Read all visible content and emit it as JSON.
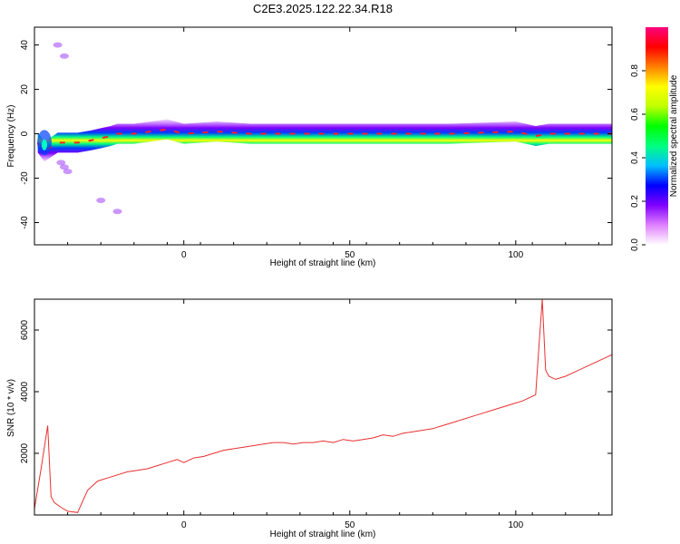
{
  "title": "C2E3.2025.122.22.34.R18",
  "chart_data": [
    {
      "type": "heatmap",
      "xlabel": "Height of straight line (km)",
      "ylabel": "Frequency (Hz)",
      "xlim": [
        -45,
        129
      ],
      "ylim": [
        -50,
        48
      ],
      "x_ticks": [
        0,
        50,
        100
      ],
      "y_ticks": [
        -40,
        -20,
        0,
        20,
        40
      ],
      "colorbar": {
        "label": "Normalized spectral amplitude",
        "range": [
          0,
          1
        ],
        "ticks": [
          0.0,
          0.2,
          0.4,
          0.6,
          0.8
        ],
        "colors": [
          "#ffffff",
          "#e080ff",
          "#8000ff",
          "#0000ff",
          "#00c0ff",
          "#00ff80",
          "#00ff00",
          "#c0ff00",
          "#ffff00",
          "#ff8000",
          "#ff0000",
          "#ff0080"
        ]
      },
      "ridge": [
        {
          "x": -44,
          "f": -4
        },
        {
          "x": -42,
          "f": -8
        },
        {
          "x": -40,
          "f": -6
        },
        {
          "x": -38,
          "f": -4
        },
        {
          "x": -35,
          "f": -4
        },
        {
          "x": -32,
          "f": -4
        },
        {
          "x": -28,
          "f": -3
        },
        {
          "x": -25,
          "f": -2
        },
        {
          "x": -22,
          "f": -1
        },
        {
          "x": -20,
          "f": 0
        },
        {
          "x": -15,
          "f": 0
        },
        {
          "x": -10,
          "f": 1
        },
        {
          "x": -5,
          "f": 2
        },
        {
          "x": 0,
          "f": 0
        },
        {
          "x": 10,
          "f": 1
        },
        {
          "x": 20,
          "f": 0
        },
        {
          "x": 40,
          "f": 0
        },
        {
          "x": 60,
          "f": 0
        },
        {
          "x": 80,
          "f": 0
        },
        {
          "x": 100,
          "f": 1
        },
        {
          "x": 106,
          "f": -1
        },
        {
          "x": 110,
          "f": 0
        },
        {
          "x": 129,
          "f": 0
        }
      ],
      "scatter_features": [
        {
          "x": -36,
          "f": -15
        },
        {
          "x": -35,
          "f": -17
        },
        {
          "x": -37,
          "f": -13
        },
        {
          "x": -25,
          "f": -30
        },
        {
          "x": -20,
          "f": -35
        },
        {
          "x": -38,
          "f": 40
        },
        {
          "x": -36,
          "f": 35
        }
      ]
    },
    {
      "type": "line",
      "xlabel": "Height of straight line (km)",
      "ylabel": "SNR (10 * v/v)",
      "xlim": [
        -45,
        129
      ],
      "ylim": [
        0,
        7000
      ],
      "x_ticks": [
        0,
        50,
        100
      ],
      "y_ticks": [
        2000,
        4000,
        6000
      ],
      "color": "#e83030",
      "x": [
        -45,
        -43,
        -41,
        -40,
        -39,
        -37,
        -35,
        -32,
        -29,
        -26,
        -23,
        -20,
        -17,
        -14,
        -11,
        -8,
        -5,
        -2,
        0,
        3,
        6,
        9,
        12,
        15,
        18,
        21,
        24,
        27,
        30,
        33,
        36,
        39,
        42,
        45,
        48,
        51,
        54,
        57,
        60,
        63,
        66,
        69,
        72,
        75,
        78,
        81,
        84,
        87,
        90,
        93,
        96,
        99,
        102,
        104,
        106,
        107,
        108,
        109,
        110,
        112,
        115,
        118,
        121,
        124,
        127,
        129
      ],
      "y": [
        200,
        1500,
        2900,
        600,
        400,
        250,
        120,
        80,
        800,
        1100,
        1200,
        1300,
        1400,
        1450,
        1500,
        1600,
        1700,
        1800,
        1700,
        1850,
        1900,
        2000,
        2100,
        2150,
        2200,
        2250,
        2300,
        2350,
        2350,
        2300,
        2350,
        2350,
        2400,
        2350,
        2450,
        2400,
        2450,
        2500,
        2600,
        2550,
        2650,
        2700,
        2750,
        2800,
        2900,
        3000,
        3100,
        3200,
        3300,
        3400,
        3500,
        3600,
        3700,
        3800,
        3900,
        5500,
        7000,
        4700,
        4500,
        4400,
        4500,
        4650,
        4800,
        4950,
        5100,
        5200
      ]
    }
  ]
}
